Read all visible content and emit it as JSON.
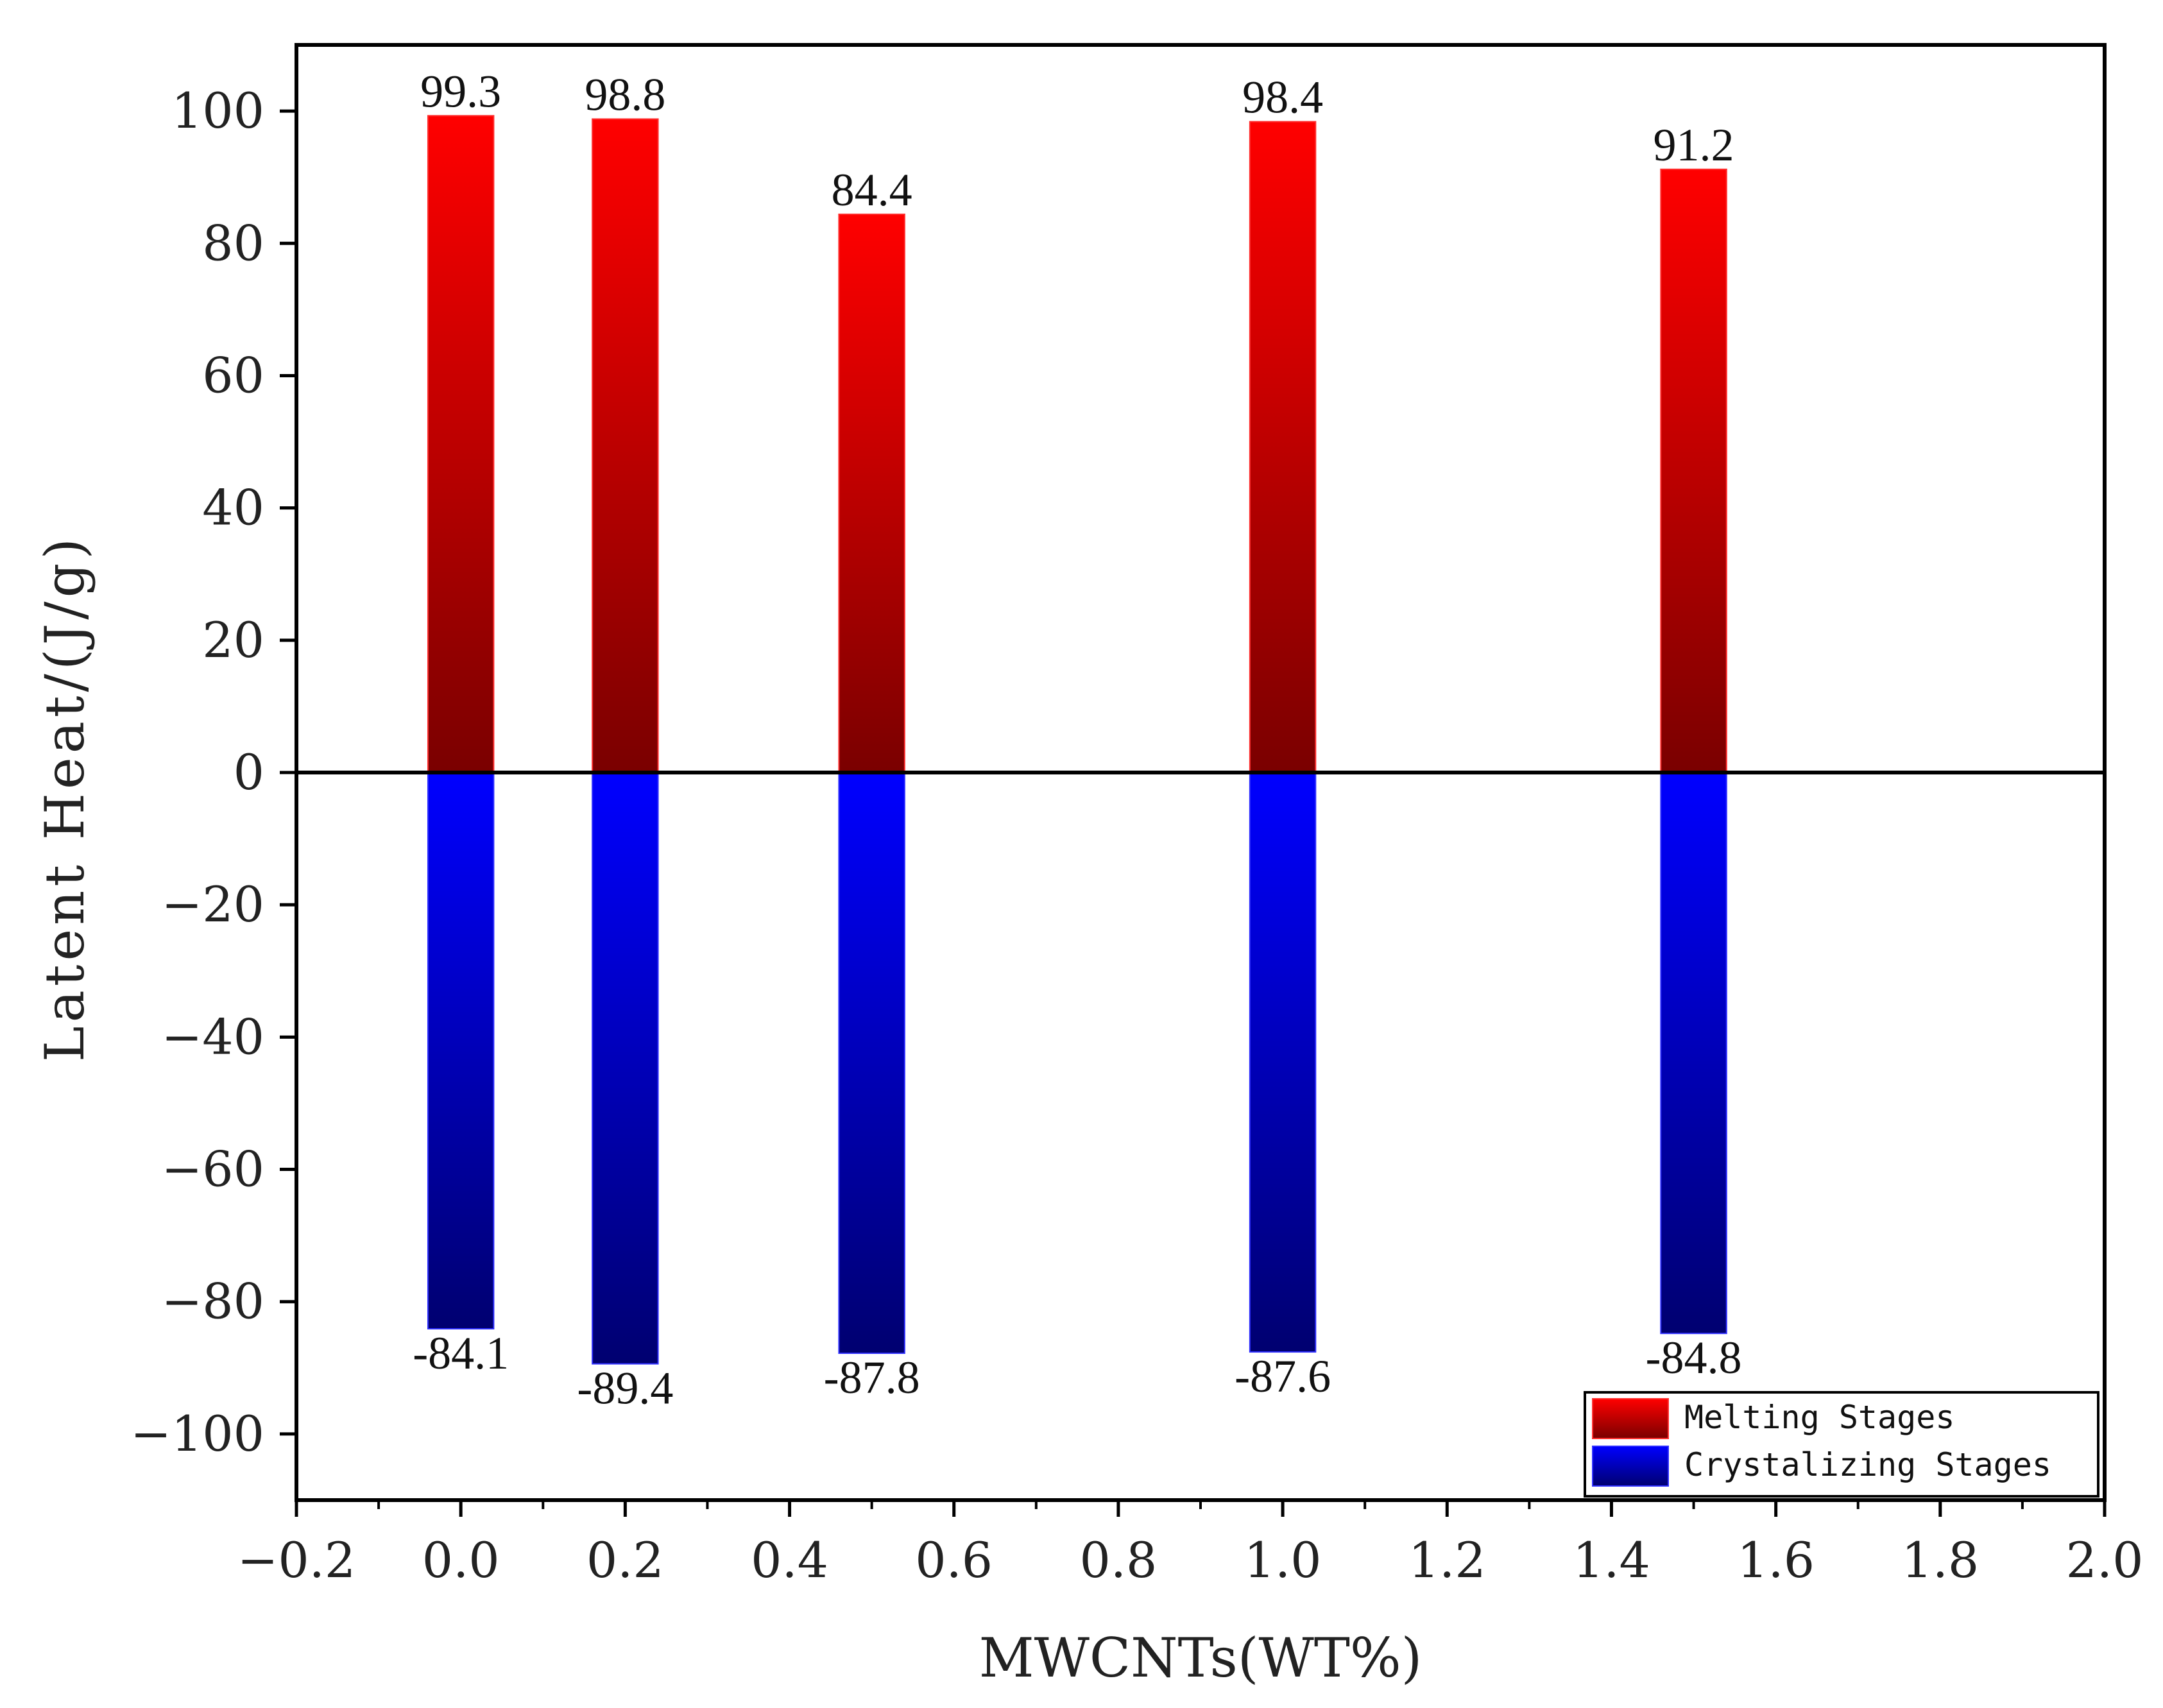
{
  "chart_data": {
    "type": "bar",
    "xlabel": "MWCNTs(WT%)",
    "ylabel": "Latent Heat/(J/g)",
    "xlim": [
      -0.2,
      2.0
    ],
    "ylim": [
      -110,
      110
    ],
    "x_ticks": [
      -0.2,
      0.0,
      0.2,
      0.4,
      0.6,
      0.8,
      1.0,
      1.2,
      1.4,
      1.6,
      1.8,
      2.0
    ],
    "x_tick_labels": [
      "−0.2",
      "0.0",
      "0.2",
      "0.4",
      "0.6",
      "0.8",
      "1.0",
      "1.2",
      "1.4",
      "1.6",
      "1.8",
      "2.0"
    ],
    "y_ticks": [
      -100,
      -80,
      -60,
      -40,
      -20,
      0,
      20,
      40,
      60,
      80,
      100
    ],
    "y_tick_labels": [
      "−100",
      "−80",
      "−60",
      "−40",
      "−20",
      "0",
      "20",
      "40",
      "60",
      "80",
      "100"
    ],
    "x": [
      0.0,
      0.2,
      0.5,
      1.0,
      1.5
    ],
    "bar_width": 0.08,
    "series": [
      {
        "name": "Melting Stages",
        "values": [
          99.3,
          98.8,
          84.4,
          98.4,
          91.2
        ],
        "labels": [
          "99.3",
          "98.8",
          "84.4",
          "98.4",
          "91.2"
        ],
        "color_top": "#ff0000",
        "color_bottom": "#7a0000"
      },
      {
        "name": "Crystalizing Stages",
        "values": [
          -84.1,
          -89.4,
          -87.8,
          -87.6,
          -84.8
        ],
        "labels": [
          "-84.1",
          "-89.4",
          "-87.8",
          "-87.6",
          "-84.8"
        ],
        "color_top": "#0000ff",
        "color_bottom": "#000070"
      }
    ],
    "zero_line": true,
    "grid": false,
    "legend_position": "bottom-right"
  }
}
